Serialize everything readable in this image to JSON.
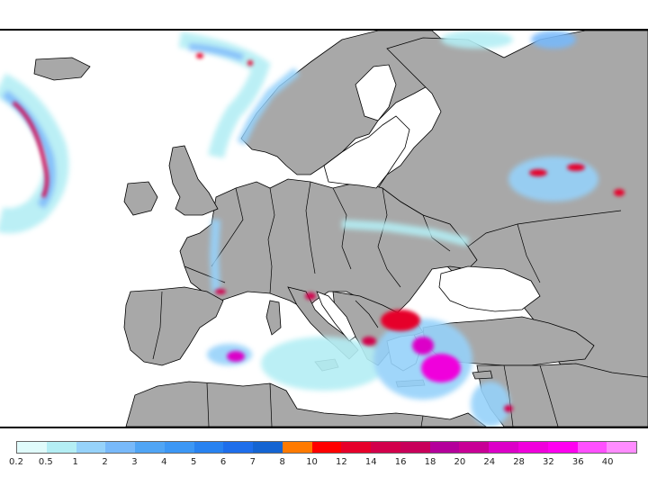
{
  "legend": {
    "labels": [
      "0.2",
      "0.5",
      "1",
      "2",
      "3",
      "4",
      "5",
      "6",
      "7",
      "8",
      "10",
      "12",
      "14",
      "16",
      "18",
      "20",
      "24",
      "28",
      "32",
      "36",
      "40"
    ],
    "colors": [
      "#e0fbfb",
      "#b4eef4",
      "#96d2fa",
      "#78b9fa",
      "#50a5f5",
      "#3c97f5",
      "#2882f0",
      "#1e6eeb",
      "#1464d2",
      "#ff7a00",
      "#ff0000",
      "#e6002a",
      "#d2004b",
      "#c8005a",
      "#b4009b",
      "#c80096",
      "#dc00c8",
      "#f000dc",
      "#ff00f0",
      "#ff50ff",
      "#ff8cff"
    ]
  },
  "map": {
    "land_color": "#a8a8a8",
    "sea_color": "#ffffff",
    "border_color": "#000000"
  }
}
